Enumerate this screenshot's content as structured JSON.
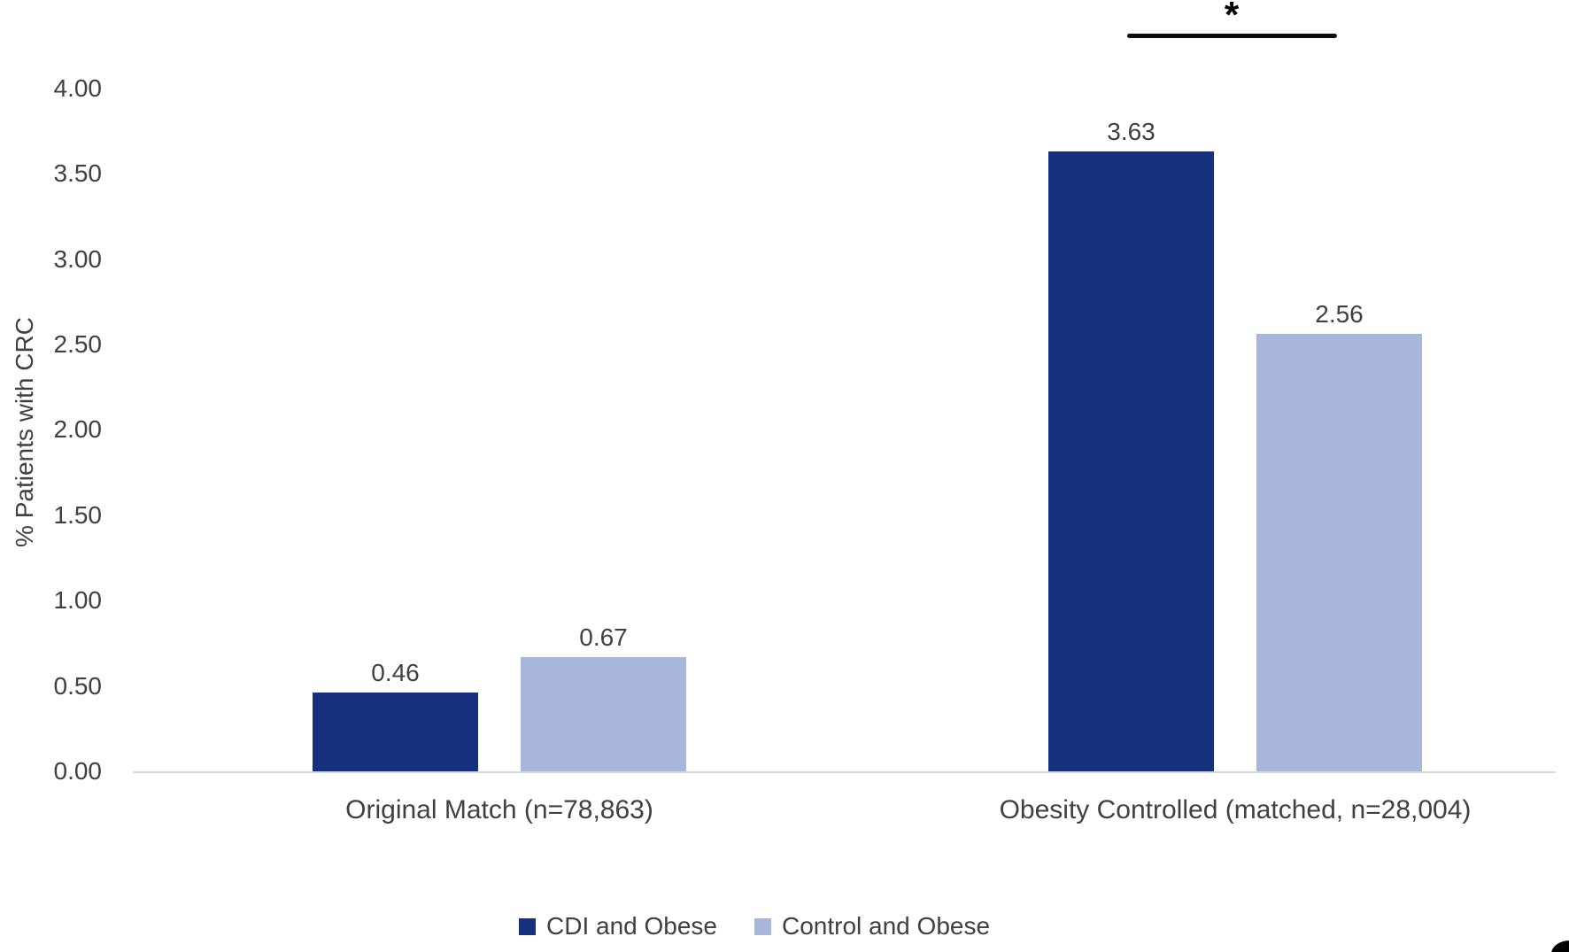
{
  "chart_data": {
    "type": "bar",
    "title": "",
    "xlabel": "",
    "ylabel": "% Patients with CRC",
    "ylim": [
      0,
      4.0
    ],
    "yticks": [
      "0.00",
      "0.50",
      "1.00",
      "1.50",
      "2.00",
      "2.50",
      "3.00",
      "3.50",
      "4.00"
    ],
    "categories": [
      "Original Match (n=78,863)",
      "Obesity Controlled (matched, n=28,004)"
    ],
    "series": [
      {
        "name": "CDI and Obese",
        "color": "#15317D",
        "values": [
          0.46,
          3.63
        ],
        "data_labels": [
          "0.46",
          "3.63"
        ]
      },
      {
        "name": "Control and Obese",
        "color": "#A8B6DC",
        "values": [
          0.67,
          2.56
        ],
        "data_labels": [
          "0.67",
          "2.56"
        ]
      }
    ],
    "grid": false,
    "legend_position": "bottom",
    "significance": {
      "symbol": "*",
      "over_category": "Obesity Controlled (matched, n=28,004)"
    }
  },
  "colors": {
    "axis_line": "#d9d9d9",
    "text": "#404040",
    "significance": "#000000",
    "background": "#ffffff"
  }
}
